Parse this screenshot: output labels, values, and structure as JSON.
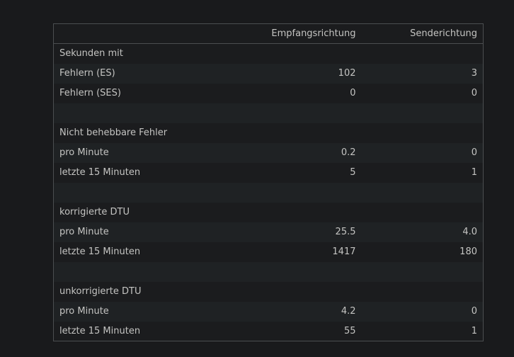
{
  "table": {
    "columns": [
      "",
      "Empfangsrichtung",
      "Senderichtung"
    ],
    "rows": [
      [
        "Sekunden mit",
        "",
        ""
      ],
      [
        "Fehlern (ES)",
        "102",
        "3"
      ],
      [
        "Fehlern (SES)",
        "0",
        "0"
      ],
      [
        "",
        "",
        ""
      ],
      [
        "Nicht behebbare Fehler",
        "",
        ""
      ],
      [
        "pro Minute",
        "0.2",
        "0"
      ],
      [
        "letzte 15 Minuten",
        "5",
        "1"
      ],
      [
        "",
        "",
        ""
      ],
      [
        "korrigierte DTU",
        "",
        ""
      ],
      [
        "pro Minute",
        "25.5",
        "4.0"
      ],
      [
        "letzte 15 Minuten",
        "1417",
        "180"
      ],
      [
        "",
        "",
        ""
      ],
      [
        "unkorrigierte DTU",
        "",
        ""
      ],
      [
        "pro Minute",
        "4.2",
        "0"
      ],
      [
        "letzte 15 Minuten",
        "55",
        "1"
      ]
    ]
  }
}
